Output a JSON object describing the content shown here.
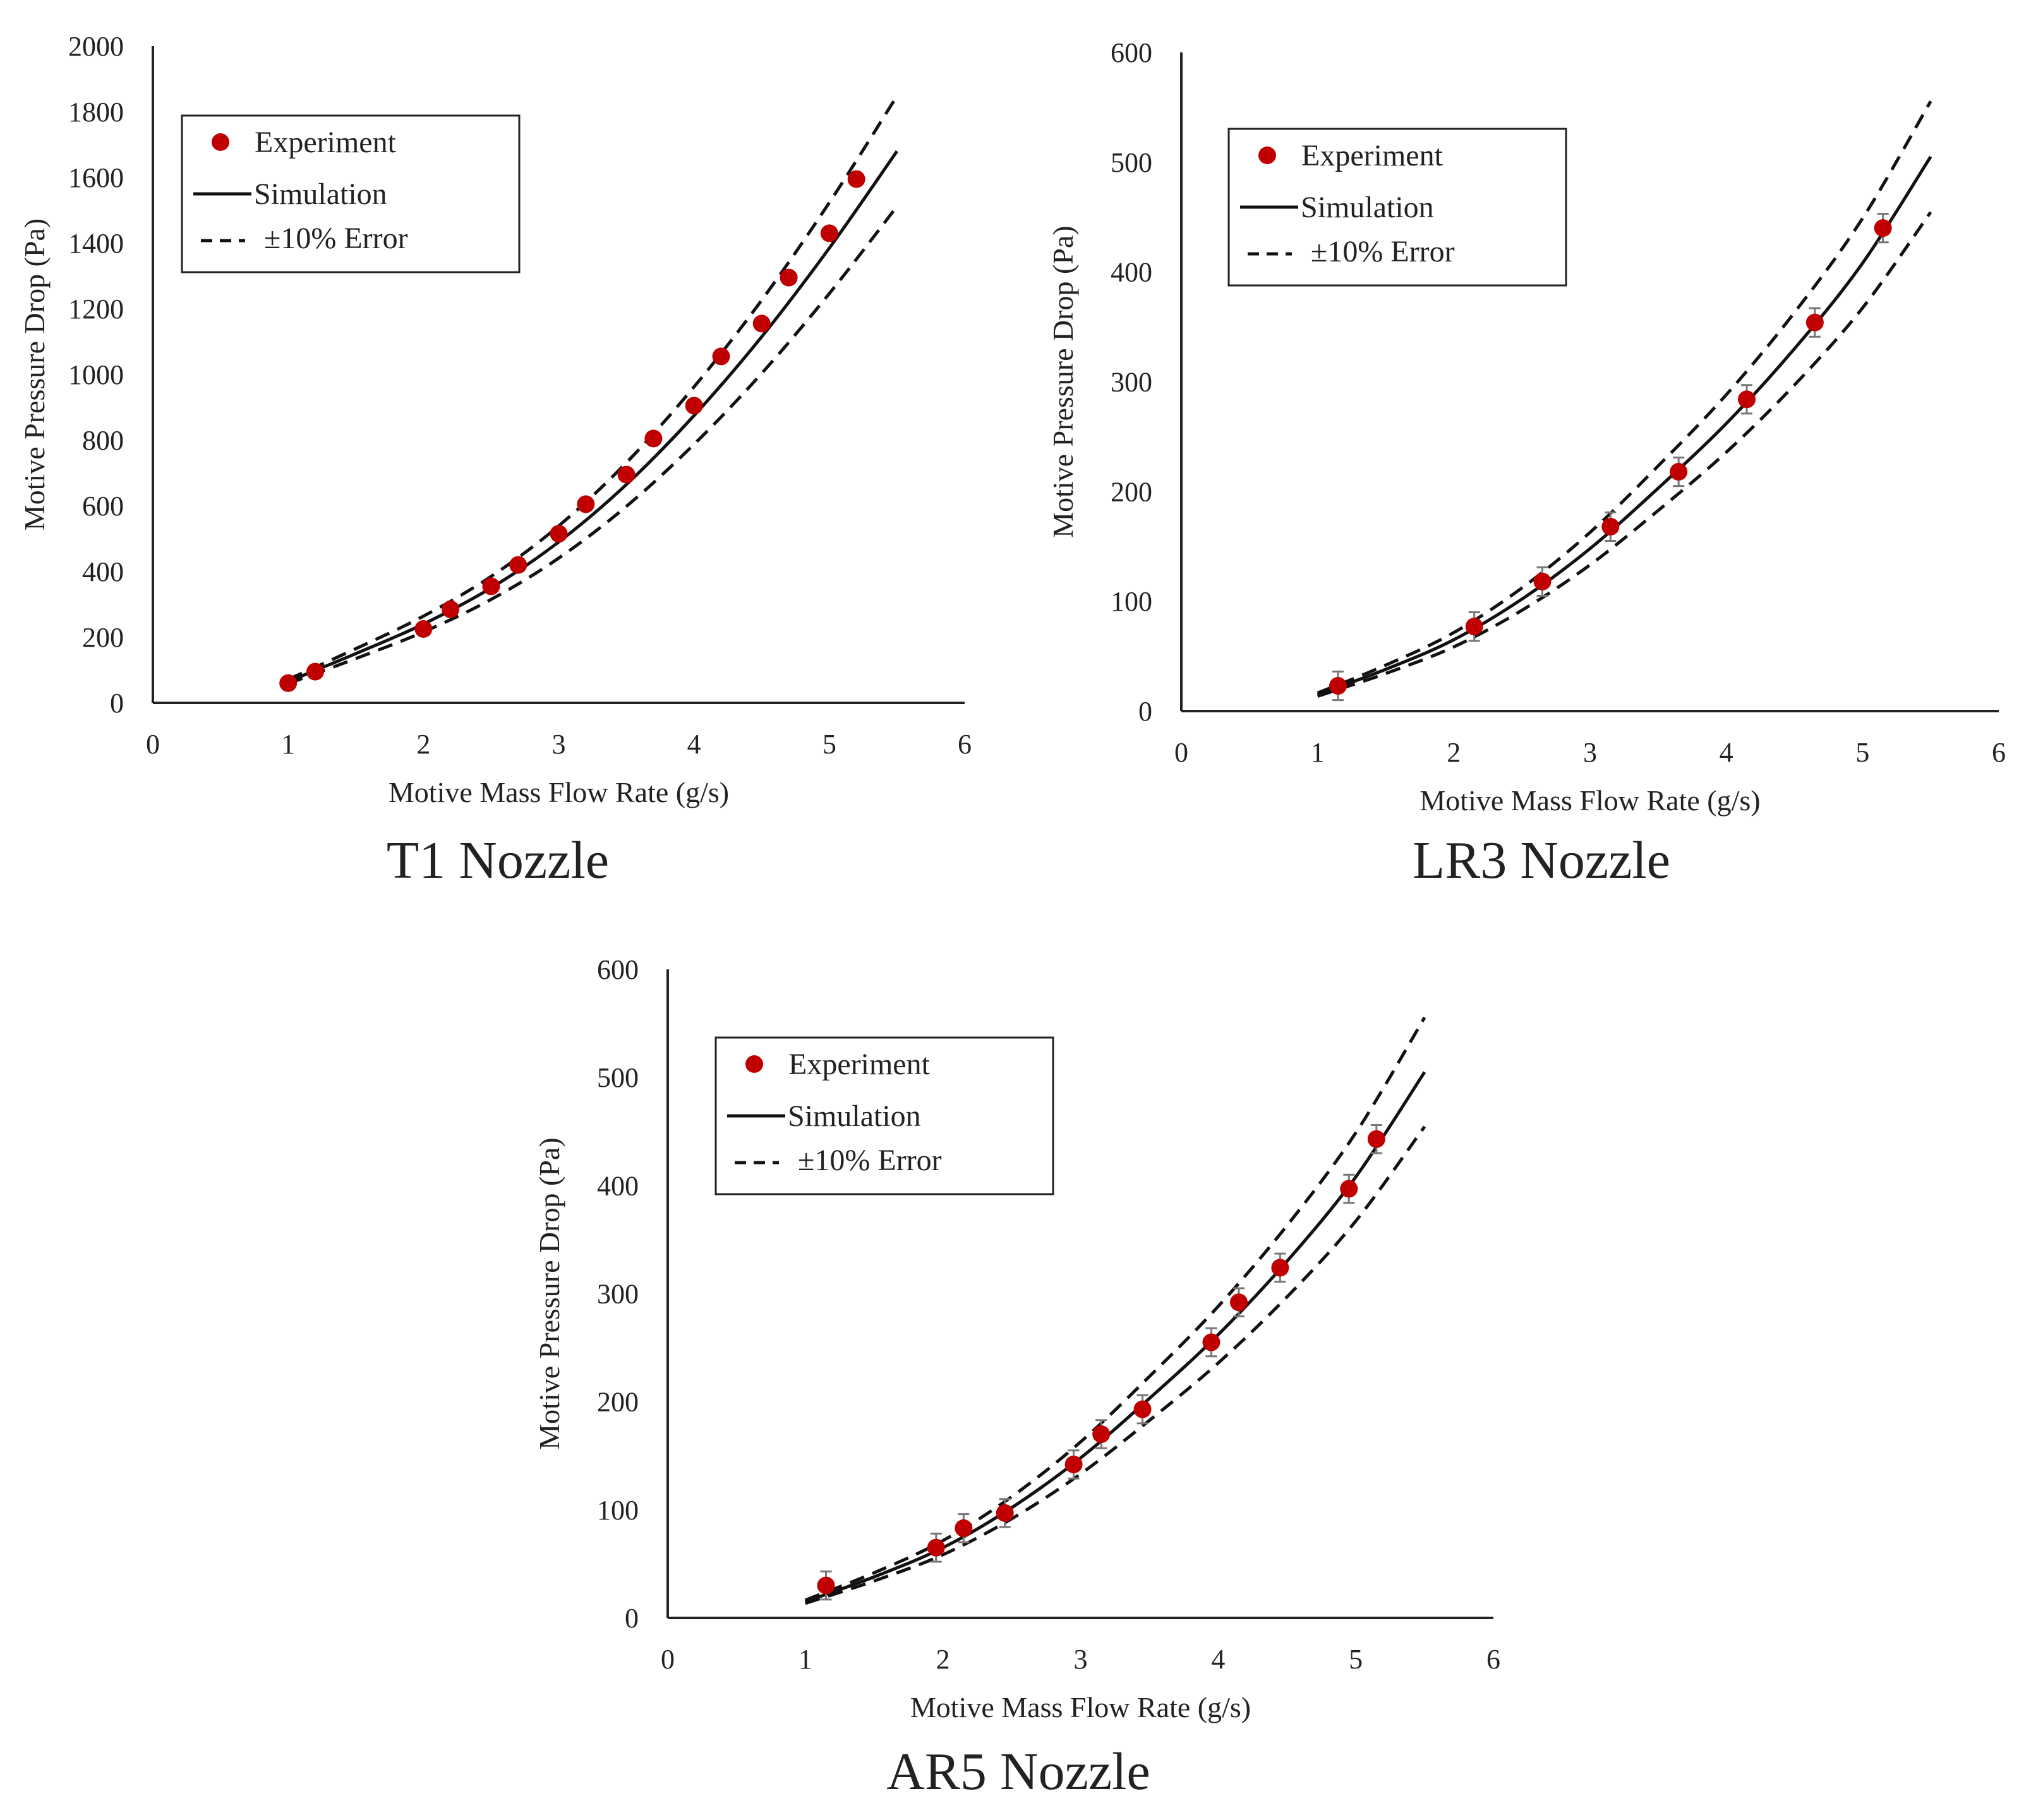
{
  "chart_data": [
    {
      "id": "t1",
      "type": "scatter",
      "caption": "T1 Nozzle",
      "xlabel": "Motive Mass Flow Rate (g/s)",
      "ylabel": "Motive Pressure Drop (Pa)",
      "xlim": [
        0,
        6
      ],
      "ylim": [
        0,
        2000
      ],
      "xticks": [
        0,
        1,
        2,
        3,
        4,
        5,
        6
      ],
      "yticks": [
        0,
        200,
        400,
        600,
        800,
        1000,
        1200,
        1400,
        1600,
        1800,
        2000
      ],
      "legend": {
        "experiment": "Experiment",
        "simulation": "Simulation",
        "error": "±10% Error"
      },
      "experiment": {
        "x": [
          1.0,
          1.2,
          2.0,
          2.2,
          2.5,
          2.7,
          3.0,
          3.2,
          3.5,
          3.7,
          4.0,
          4.2,
          4.5,
          4.7,
          5.0,
          5.2
        ],
        "y": [
          60,
          95,
          225,
          285,
          355,
          420,
          515,
          605,
          695,
          805,
          905,
          1055,
          1155,
          1295,
          1430,
          1595
        ],
        "error": 0
      },
      "simulation": {
        "x": [
          1.0,
          1.5,
          2.0,
          2.5,
          3.0,
          3.5,
          4.0,
          4.5,
          5.0,
          5.5
        ],
        "y": [
          65,
          150,
          240,
          350,
          490,
          665,
          875,
          1115,
          1385,
          1680
        ]
      },
      "error_band": 0.1,
      "color": "#c00000"
    },
    {
      "id": "lr3",
      "type": "scatter",
      "caption": "LR3 Nozzle",
      "xlabel": "Motive Mass Flow Rate (g/s)",
      "ylabel": "Motive Pressure Drop (Pa)",
      "xlim": [
        0,
        6
      ],
      "ylim": [
        0,
        600
      ],
      "xticks": [
        0,
        1,
        2,
        3,
        4,
        5,
        6
      ],
      "yticks": [
        0,
        100,
        200,
        300,
        400,
        500,
        600
      ],
      "legend": {
        "experiment": "Experiment",
        "simulation": "Simulation",
        "error": "±10% Error"
      },
      "experiment": {
        "x": [
          1.15,
          2.15,
          2.65,
          3.15,
          3.65,
          4.15,
          4.65,
          5.15
        ],
        "y": [
          23,
          77,
          118,
          168,
          218,
          284,
          354,
          440
        ],
        "error": 13
      },
      "simulation": {
        "x": [
          1.0,
          1.5,
          2.0,
          2.5,
          3.0,
          3.5,
          4.0,
          4.5,
          5.0,
          5.5
        ],
        "y": [
          15,
          38,
          65,
          102,
          148,
          203,
          262,
          330,
          408,
          505
        ]
      },
      "error_band": 0.1,
      "color": "#c00000"
    },
    {
      "id": "ar5",
      "type": "scatter",
      "caption": "AR5 Nozzle",
      "xlabel": "Motive Mass Flow Rate (g/s)",
      "ylabel": "Motive Pressure Drop (Pa)",
      "xlim": [
        0,
        6
      ],
      "ylim": [
        0,
        600
      ],
      "xticks": [
        0,
        1,
        2,
        3,
        4,
        5,
        6
      ],
      "yticks": [
        0,
        100,
        200,
        300,
        400,
        500,
        600
      ],
      "legend": {
        "experiment": "Experiment",
        "simulation": "Simulation",
        "error": "±10% Error"
      },
      "experiment": {
        "x": [
          1.15,
          1.95,
          2.15,
          2.45,
          2.95,
          3.15,
          3.45,
          3.95,
          4.15,
          4.45,
          4.95,
          5.15
        ],
        "y": [
          30,
          65,
          83,
          97,
          142,
          170,
          193,
          255,
          292,
          324,
          397,
          443
        ],
        "error": 13
      },
      "simulation": {
        "x": [
          1.0,
          1.5,
          2.0,
          2.5,
          3.0,
          3.5,
          4.0,
          4.5,
          5.0,
          5.5
        ],
        "y": [
          15,
          38,
          65,
          102,
          148,
          203,
          262,
          330,
          408,
          505
        ]
      },
      "error_band": 0.1,
      "color": "#c00000"
    }
  ]
}
